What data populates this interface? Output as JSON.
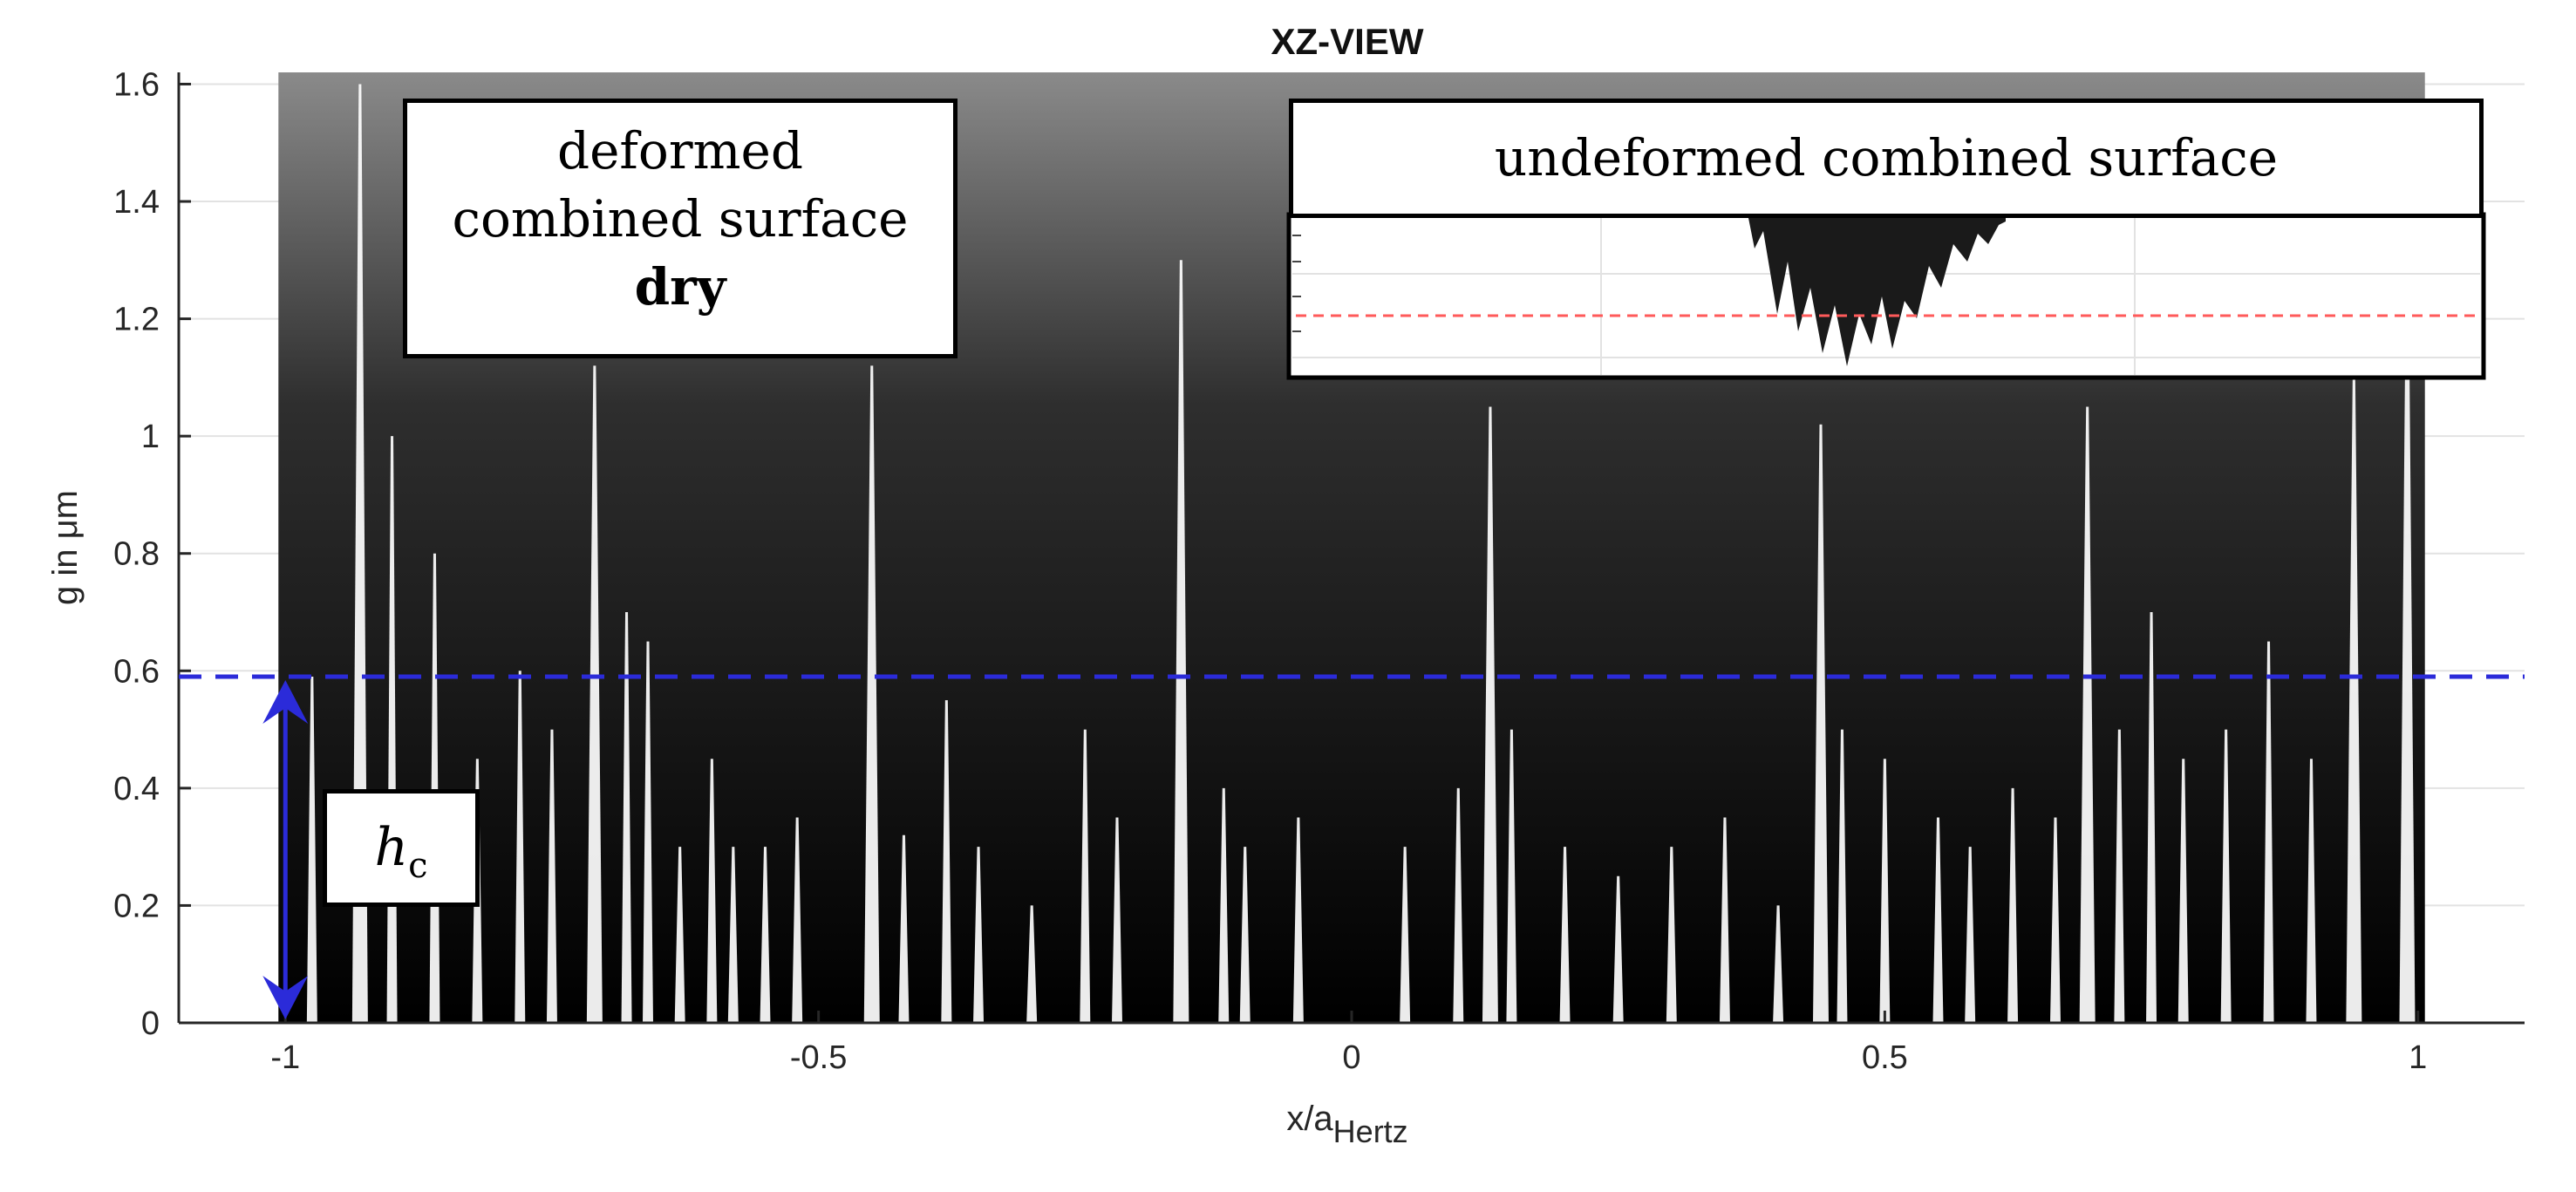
{
  "chart_data": {
    "type": "area",
    "title": "XZ-VIEW",
    "xlabel": "x/a",
    "xlabel_sub": "Hertz",
    "ylabel": "g in μm",
    "xlim": [
      -1.1,
      1.1
    ],
    "ylim": [
      0,
      1.62
    ],
    "x_ticks": [
      {
        "value": -1,
        "label": "-1"
      },
      {
        "value": -0.5,
        "label": "-0.5"
      },
      {
        "value": 0,
        "label": "0"
      },
      {
        "value": 0.5,
        "label": "0.5"
      },
      {
        "value": 1,
        "label": "1"
      }
    ],
    "y_ticks": [
      {
        "value": 0,
        "label": "0"
      },
      {
        "value": 0.2,
        "label": "0.2"
      },
      {
        "value": 0.4,
        "label": "0.4"
      },
      {
        "value": 0.6,
        "label": "0.6"
      },
      {
        "value": 0.8,
        "label": "0.8"
      },
      {
        "value": 1,
        "label": "1"
      },
      {
        "value": 1.2,
        "label": "1.2"
      },
      {
        "value": 1.4,
        "label": "1.4"
      },
      {
        "value": 1.6,
        "label": "1.6"
      }
    ],
    "grid": true,
    "hc_value": 0.59,
    "dashed_line_color": "#2b2bd9",
    "surface_color": "#111111",
    "surface_extent": [
      -1.0,
      1.0
    ],
    "gaps": [
      {
        "x": -0.975,
        "top": 0.59
      },
      {
        "x": -0.93,
        "top": 1.6
      },
      {
        "x": -0.9,
        "top": 1.0
      },
      {
        "x": -0.86,
        "top": 0.8
      },
      {
        "x": -0.82,
        "top": 0.45
      },
      {
        "x": -0.78,
        "top": 0.6
      },
      {
        "x": -0.75,
        "top": 0.5
      },
      {
        "x": -0.71,
        "top": 1.12
      },
      {
        "x": -0.68,
        "top": 0.7
      },
      {
        "x": -0.66,
        "top": 0.65
      },
      {
        "x": -0.63,
        "top": 0.3
      },
      {
        "x": -0.6,
        "top": 0.45
      },
      {
        "x": -0.58,
        "top": 0.3
      },
      {
        "x": -0.55,
        "top": 0.3
      },
      {
        "x": -0.52,
        "top": 0.35
      },
      {
        "x": -0.45,
        "top": 1.12
      },
      {
        "x": -0.42,
        "top": 0.32
      },
      {
        "x": -0.38,
        "top": 0.55
      },
      {
        "x": -0.35,
        "top": 0.3
      },
      {
        "x": -0.3,
        "top": 0.2
      },
      {
        "x": -0.25,
        "top": 0.5
      },
      {
        "x": -0.22,
        "top": 0.35
      },
      {
        "x": -0.16,
        "top": 1.3
      },
      {
        "x": -0.12,
        "top": 0.4
      },
      {
        "x": -0.1,
        "top": 0.3
      },
      {
        "x": -0.05,
        "top": 0.35
      },
      {
        "x": 0.05,
        "top": 0.3
      },
      {
        "x": 0.1,
        "top": 0.4
      },
      {
        "x": 0.13,
        "top": 1.05
      },
      {
        "x": 0.15,
        "top": 0.5
      },
      {
        "x": 0.2,
        "top": 0.3
      },
      {
        "x": 0.25,
        "top": 0.25
      },
      {
        "x": 0.3,
        "top": 0.3
      },
      {
        "x": 0.35,
        "top": 0.35
      },
      {
        "x": 0.4,
        "top": 0.2
      },
      {
        "x": 0.44,
        "top": 1.02
      },
      {
        "x": 0.46,
        "top": 0.5
      },
      {
        "x": 0.5,
        "top": 0.45
      },
      {
        "x": 0.55,
        "top": 0.35
      },
      {
        "x": 0.58,
        "top": 0.3
      },
      {
        "x": 0.62,
        "top": 0.4
      },
      {
        "x": 0.66,
        "top": 0.35
      },
      {
        "x": 0.69,
        "top": 1.05
      },
      {
        "x": 0.72,
        "top": 0.5
      },
      {
        "x": 0.75,
        "top": 0.7
      },
      {
        "x": 0.78,
        "top": 0.45
      },
      {
        "x": 0.82,
        "top": 0.5
      },
      {
        "x": 0.86,
        "top": 0.65
      },
      {
        "x": 0.9,
        "top": 0.45
      },
      {
        "x": 0.94,
        "top": 1.1
      },
      {
        "x": 0.99,
        "top": 1.3
      }
    ]
  },
  "annotations": {
    "deformed_line1": "deformed",
    "deformed_line2": "combined surface",
    "deformed_line3": "dry",
    "undeformed_title": "undeformed combined surface",
    "hc_symbol": "h",
    "hc_sub": "c"
  },
  "inset": {
    "dashed_line_color": "#ff5a5a",
    "surface_color": "#1a1a1a"
  }
}
